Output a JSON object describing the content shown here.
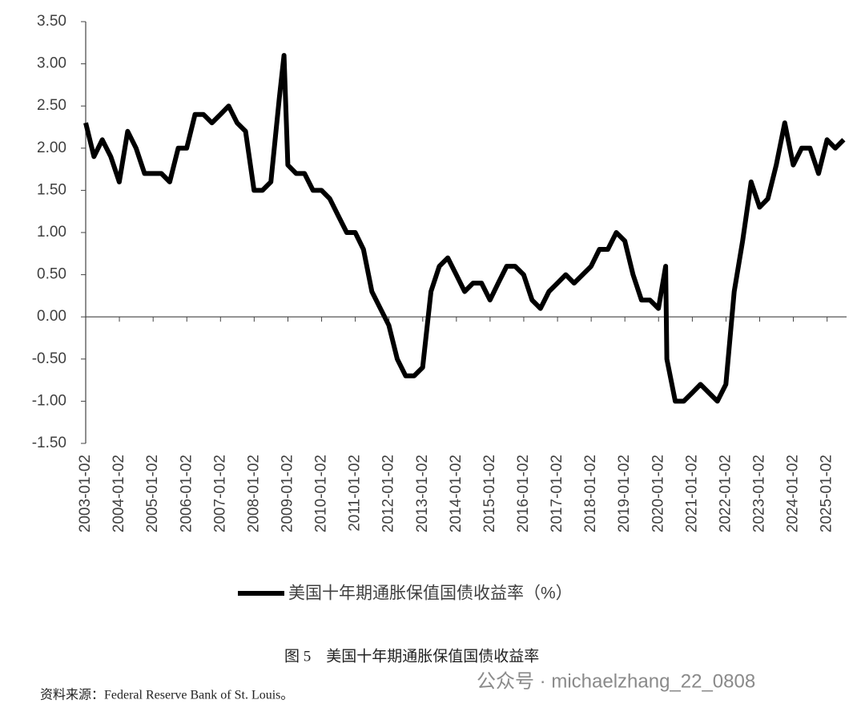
{
  "chart_data": {
    "type": "line",
    "legend_label": "美国十年期通胀保值国债收益率（%）",
    "caption": "图 5　美国十年期通胀保值国债收益率",
    "source": "资料来源：Federal Reserve Bank of St. Louis。",
    "watermark": "公众号 · michaelzhang_22_0808",
    "x": [
      "2003-01-02",
      "2003-04-01",
      "2003-07-01",
      "2003-10-01",
      "2004-01-01",
      "2004-04-01",
      "2004-07-01",
      "2004-10-01",
      "2005-01-01",
      "2005-04-01",
      "2005-07-01",
      "2005-10-01",
      "2006-01-01",
      "2006-04-01",
      "2006-07-01",
      "2006-10-01",
      "2007-01-01",
      "2007-04-01",
      "2007-07-01",
      "2007-10-01",
      "2008-01-01",
      "2008-04-01",
      "2008-07-01",
      "2008-10-01",
      "2008-11-20",
      "2009-01-01",
      "2009-04-01",
      "2009-07-01",
      "2009-10-01",
      "2010-01-01",
      "2010-04-01",
      "2010-07-01",
      "2010-10-01",
      "2011-01-01",
      "2011-04-01",
      "2011-07-01",
      "2011-10-01",
      "2012-01-01",
      "2012-04-01",
      "2012-07-01",
      "2012-10-01",
      "2013-01-01",
      "2013-04-01",
      "2013-07-01",
      "2013-10-01",
      "2014-01-01",
      "2014-04-01",
      "2014-07-01",
      "2014-10-01",
      "2015-01-01",
      "2015-04-01",
      "2015-07-01",
      "2015-10-01",
      "2016-01-01",
      "2016-04-01",
      "2016-07-01",
      "2016-10-01",
      "2017-01-01",
      "2017-04-01",
      "2017-07-01",
      "2017-10-01",
      "2018-01-01",
      "2018-04-01",
      "2018-07-01",
      "2018-10-01",
      "2019-01-01",
      "2019-04-01",
      "2019-07-01",
      "2019-10-01",
      "2020-01-01",
      "2020-03-19",
      "2020-04-01",
      "2020-07-01",
      "2020-10-01",
      "2021-01-01",
      "2021-04-01",
      "2021-07-01",
      "2021-10-01",
      "2022-01-01",
      "2022-04-01",
      "2022-07-01",
      "2022-10-01",
      "2023-01-01",
      "2023-04-01",
      "2023-07-01",
      "2023-10-01",
      "2024-01-01",
      "2024-04-01",
      "2024-07-01",
      "2024-10-01",
      "2025-01-01",
      "2025-04-01",
      "2025-07-01"
    ],
    "values": [
      2.3,
      1.9,
      2.1,
      1.9,
      1.6,
      2.2,
      2.0,
      1.7,
      1.7,
      1.7,
      1.6,
      2.0,
      2.0,
      2.4,
      2.4,
      2.3,
      2.4,
      2.5,
      2.3,
      2.2,
      1.5,
      1.5,
      1.6,
      2.6,
      3.1,
      1.8,
      1.7,
      1.7,
      1.5,
      1.5,
      1.4,
      1.2,
      1.0,
      1.0,
      0.8,
      0.3,
      0.1,
      -0.1,
      -0.5,
      -0.7,
      -0.7,
      -0.6,
      0.3,
      0.6,
      0.7,
      0.5,
      0.3,
      0.4,
      0.4,
      0.2,
      0.4,
      0.6,
      0.6,
      0.5,
      0.2,
      0.1,
      0.3,
      0.4,
      0.5,
      0.4,
      0.5,
      0.6,
      0.8,
      0.8,
      1.0,
      0.9,
      0.5,
      0.2,
      0.2,
      0.1,
      0.6,
      -0.5,
      -1.0,
      -1.0,
      -0.9,
      -0.8,
      -0.9,
      -1.0,
      -0.8,
      0.3,
      0.9,
      1.6,
      1.3,
      1.4,
      1.8,
      2.3,
      1.8,
      2.0,
      2.0,
      1.7,
      2.1,
      2.0,
      2.1
    ],
    "color": "#000000",
    "xlim": [
      "2003-01-02",
      "2025-08-01"
    ],
    "xticks": [
      "2003-01-02",
      "2004-01-02",
      "2005-01-02",
      "2006-01-02",
      "2007-01-02",
      "2008-01-02",
      "2009-01-02",
      "2010-01-02",
      "2011-01-02",
      "2012-01-02",
      "2013-01-02",
      "2014-01-02",
      "2015-01-02",
      "2016-01-02",
      "2017-01-02",
      "2018-01-02",
      "2019-01-02",
      "2020-01-02",
      "2021-01-02",
      "2022-01-02",
      "2023-01-02",
      "2024-01-02",
      "2025-01-02"
    ],
    "ylim": [
      -1.5,
      3.5
    ],
    "yticks": [
      {
        "value": -1.5,
        "label": "-1.50"
      },
      {
        "value": -1,
        "label": "-1.00"
      },
      {
        "value": -0.5,
        "label": "-0.50"
      },
      {
        "value": 0,
        "label": "0.00"
      },
      {
        "value": 0.5,
        "label": "0.50"
      },
      {
        "value": 1,
        "label": "1.00"
      },
      {
        "value": 1.5,
        "label": "1.50"
      },
      {
        "value": 2,
        "label": "2.00"
      },
      {
        "value": 2.5,
        "label": "2.50"
      },
      {
        "value": 3,
        "label": "3.00"
      },
      {
        "value": 3.5,
        "label": "3.50"
      }
    ]
  }
}
